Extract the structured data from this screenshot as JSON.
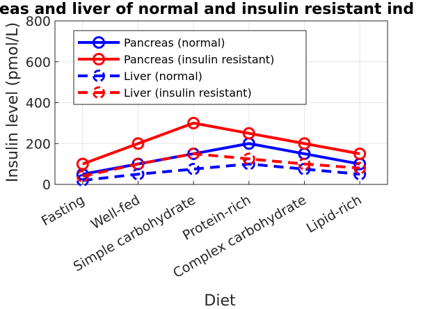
{
  "chart_data": {
    "type": "line",
    "title": "eas and liver of normal and insulin resistant ind",
    "xlabel": "Diet",
    "ylabel": "Insulin level (pmol/L)",
    "ylim": [
      0,
      800
    ],
    "yticks": [
      0,
      200,
      400,
      600,
      800
    ],
    "grid": true,
    "legend_position": "top-left",
    "categories": [
      "Fasting",
      "Well-fed",
      "Simple carbohydrate",
      "Protein-rich",
      "Complex carbohydrate",
      "Lipid-rich"
    ],
    "series": [
      {
        "name": "Pancreas (normal)",
        "color": "#0000ff",
        "dashed": false,
        "marker": "circle",
        "values": [
          50,
          100,
          150,
          200,
          150,
          100
        ]
      },
      {
        "name": "Pancreas (insulin resistant)",
        "color": "#ff0000",
        "dashed": false,
        "marker": "circle",
        "values": [
          100,
          200,
          300,
          250,
          200,
          150
        ]
      },
      {
        "name": "Liver (normal)",
        "color": "#0000ff",
        "dashed": true,
        "marker": "circle",
        "values": [
          20,
          50,
          75,
          100,
          75,
          50
        ]
      },
      {
        "name": "Liver (insulin resistant)",
        "color": "#ff0000",
        "dashed": true,
        "marker": "circle",
        "values": [
          40,
          100,
          150,
          125,
          100,
          80
        ]
      }
    ]
  }
}
